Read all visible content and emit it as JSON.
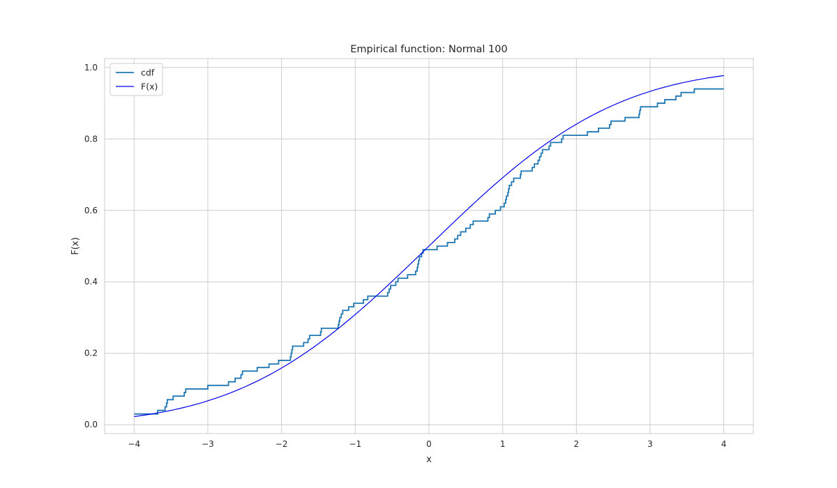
{
  "chart_data": {
    "type": "line",
    "title": "Empirical function: Normal 100",
    "xlabel": "x",
    "ylabel": "F(x)",
    "xlim": [
      -4.4,
      4.4
    ],
    "ylim": [
      -0.025,
      1.025
    ],
    "xticks": [
      -4,
      -3,
      -2,
      -1,
      0,
      1,
      2,
      3,
      4
    ],
    "xtick_labels": [
      "−4",
      "−3",
      "−2",
      "−1",
      "0",
      "1",
      "2",
      "3",
      "4"
    ],
    "yticks": [
      0.0,
      0.2,
      0.4,
      0.6,
      0.8,
      1.0
    ],
    "ytick_labels": [
      "0.0",
      "0.2",
      "0.4",
      "0.6",
      "0.8",
      "1.0"
    ],
    "grid": true,
    "legend_position": "top-left",
    "series": [
      {
        "name": "cdf",
        "kind": "step",
        "color": "#1f77b4",
        "points": [
          [
            -4.0,
            0.03
          ],
          [
            -3.68,
            0.04
          ],
          [
            -3.58,
            0.05
          ],
          [
            -3.56,
            0.06
          ],
          [
            -3.55,
            0.07
          ],
          [
            -3.47,
            0.08
          ],
          [
            -3.32,
            0.09
          ],
          [
            -3.3,
            0.1
          ],
          [
            -3.0,
            0.11
          ],
          [
            -2.72,
            0.12
          ],
          [
            -2.63,
            0.13
          ],
          [
            -2.55,
            0.14
          ],
          [
            -2.53,
            0.15
          ],
          [
            -2.33,
            0.16
          ],
          [
            -2.17,
            0.17
          ],
          [
            -2.04,
            0.18
          ],
          [
            -1.88,
            0.19
          ],
          [
            -1.87,
            0.2
          ],
          [
            -1.86,
            0.21
          ],
          [
            -1.85,
            0.22
          ],
          [
            -1.7,
            0.23
          ],
          [
            -1.64,
            0.24
          ],
          [
            -1.62,
            0.25
          ],
          [
            -1.47,
            0.26
          ],
          [
            -1.46,
            0.27
          ],
          [
            -1.23,
            0.28
          ],
          [
            -1.22,
            0.29
          ],
          [
            -1.21,
            0.3
          ],
          [
            -1.19,
            0.31
          ],
          [
            -1.17,
            0.32
          ],
          [
            -1.09,
            0.33
          ],
          [
            -1.02,
            0.34
          ],
          [
            -0.89,
            0.35
          ],
          [
            -0.83,
            0.36
          ],
          [
            -0.56,
            0.37
          ],
          [
            -0.54,
            0.38
          ],
          [
            -0.52,
            0.39
          ],
          [
            -0.45,
            0.4
          ],
          [
            -0.42,
            0.41
          ],
          [
            -0.29,
            0.42
          ],
          [
            -0.18,
            0.43
          ],
          [
            -0.16,
            0.44
          ],
          [
            -0.15,
            0.45
          ],
          [
            -0.14,
            0.46
          ],
          [
            -0.13,
            0.47
          ],
          [
            -0.1,
            0.48
          ],
          [
            -0.08,
            0.49
          ],
          [
            0.11,
            0.5
          ],
          [
            0.25,
            0.51
          ],
          [
            0.35,
            0.52
          ],
          [
            0.39,
            0.53
          ],
          [
            0.43,
            0.54
          ],
          [
            0.5,
            0.55
          ],
          [
            0.56,
            0.56
          ],
          [
            0.6,
            0.57
          ],
          [
            0.8,
            0.58
          ],
          [
            0.82,
            0.59
          ],
          [
            0.9,
            0.6
          ],
          [
            0.97,
            0.61
          ],
          [
            1.02,
            0.62
          ],
          [
            1.04,
            0.63
          ],
          [
            1.05,
            0.64
          ],
          [
            1.07,
            0.65
          ],
          [
            1.08,
            0.66
          ],
          [
            1.09,
            0.67
          ],
          [
            1.12,
            0.68
          ],
          [
            1.15,
            0.69
          ],
          [
            1.24,
            0.7
          ],
          [
            1.25,
            0.71
          ],
          [
            1.4,
            0.72
          ],
          [
            1.43,
            0.73
          ],
          [
            1.48,
            0.74
          ],
          [
            1.5,
            0.75
          ],
          [
            1.52,
            0.76
          ],
          [
            1.54,
            0.77
          ],
          [
            1.63,
            0.78
          ],
          [
            1.65,
            0.79
          ],
          [
            1.8,
            0.8
          ],
          [
            1.82,
            0.81
          ],
          [
            2.15,
            0.82
          ],
          [
            2.3,
            0.83
          ],
          [
            2.45,
            0.84
          ],
          [
            2.47,
            0.85
          ],
          [
            2.66,
            0.86
          ],
          [
            2.85,
            0.87
          ],
          [
            2.86,
            0.88
          ],
          [
            2.87,
            0.89
          ],
          [
            3.1,
            0.9
          ],
          [
            3.2,
            0.91
          ],
          [
            3.35,
            0.92
          ],
          [
            3.42,
            0.93
          ],
          [
            3.6,
            0.94
          ],
          [
            4.0,
            0.94
          ]
        ]
      },
      {
        "name": "F(x)",
        "kind": "normal-cdf",
        "mu": 0,
        "sigma": 2,
        "x_range": [
          -4,
          4
        ],
        "color": "#0000ee"
      }
    ]
  }
}
